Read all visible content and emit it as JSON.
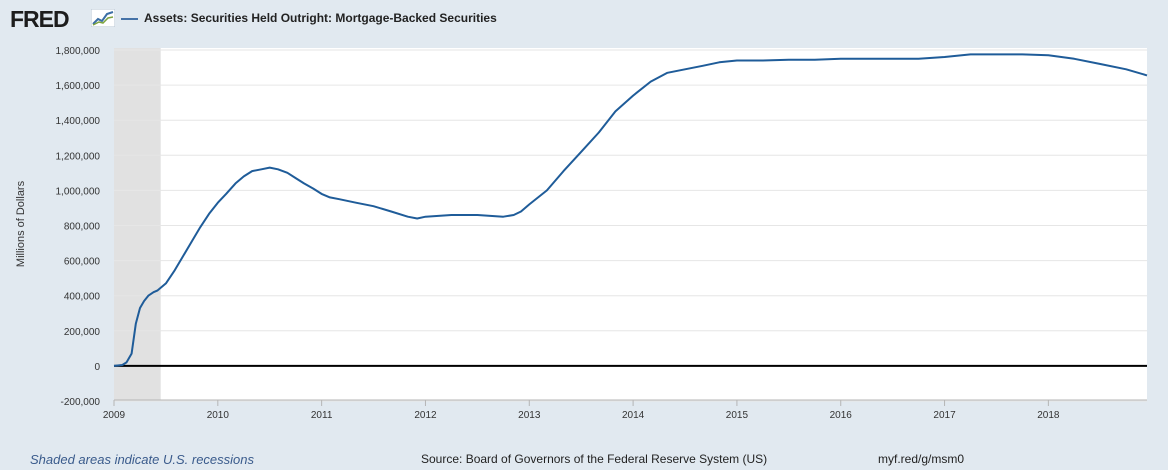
{
  "header": {
    "logo_text": "FRED",
    "logo_icon": "line-graph-icon",
    "legend_label": "Assets: Securities Held Outright: Mortgage-Backed Securities"
  },
  "footer": {
    "recession_note": "Shaded areas indicate U.S. recessions",
    "source": "Source: Board of Governors of the Federal Reserve System (US)",
    "url": "myf.red/g/msm0"
  },
  "colors": {
    "series": "#1f5c99",
    "legend_swatch": "#4572a7",
    "recession": "#e1e1e1",
    "zero_line": "#000000",
    "grid": "#e6e6e6"
  },
  "chart_data": {
    "type": "line",
    "ylabel": "Millions of Dollars",
    "xlim": [
      2009.0,
      2018.95
    ],
    "ylim": [
      -200000,
      1800000
    ],
    "y_ticks": [
      -200000,
      0,
      200000,
      400000,
      600000,
      800000,
      1000000,
      1200000,
      1400000,
      1600000,
      1800000
    ],
    "y_tick_labels": [
      "-200,000",
      "0",
      "200,000",
      "400,000",
      "600,000",
      "800,000",
      "1,000,000",
      "1,200,000",
      "1,400,000",
      "1,600,000",
      "1,800,000"
    ],
    "x_ticks": [
      2009,
      2010,
      2011,
      2012,
      2013,
      2014,
      2015,
      2016,
      2017,
      2018
    ],
    "x_tick_labels": [
      "2009",
      "2010",
      "2011",
      "2012",
      "2013",
      "2014",
      "2015",
      "2016",
      "2017",
      "2018"
    ],
    "recessions": [
      [
        2009.0,
        2009.45
      ]
    ],
    "grid": true,
    "series": [
      {
        "name": "Assets: Securities Held Outright: Mortgage-Backed Securities",
        "x": [
          2009.0,
          2009.08,
          2009.12,
          2009.17,
          2009.21,
          2009.25,
          2009.29,
          2009.33,
          2009.38,
          2009.42,
          2009.5,
          2009.58,
          2009.67,
          2009.75,
          2009.83,
          2009.92,
          2010.0,
          2010.08,
          2010.17,
          2010.25,
          2010.33,
          2010.42,
          2010.5,
          2010.58,
          2010.67,
          2010.75,
          2010.83,
          2010.92,
          2011.0,
          2011.08,
          2011.17,
          2011.33,
          2011.5,
          2011.67,
          2011.83,
          2011.92,
          2012.0,
          2012.25,
          2012.5,
          2012.75,
          2012.85,
          2012.92,
          2013.0,
          2013.17,
          2013.33,
          2013.5,
          2013.67,
          2013.83,
          2014.0,
          2014.17,
          2014.33,
          2014.5,
          2014.67,
          2014.83,
          2015.0,
          2015.25,
          2015.5,
          2015.75,
          2016.0,
          2016.25,
          2016.5,
          2016.75,
          2017.0,
          2017.25,
          2017.5,
          2017.75,
          2018.0,
          2018.25,
          2018.5,
          2018.75,
          2018.95
        ],
        "values": [
          0,
          5000,
          20000,
          70000,
          240000,
          330000,
          370000,
          400000,
          420000,
          430000,
          470000,
          540000,
          630000,
          710000,
          790000,
          870000,
          930000,
          980000,
          1040000,
          1080000,
          1110000,
          1120000,
          1130000,
          1120000,
          1100000,
          1070000,
          1040000,
          1010000,
          980000,
          960000,
          950000,
          930000,
          910000,
          880000,
          850000,
          840000,
          850000,
          860000,
          860000,
          850000,
          860000,
          880000,
          920000,
          1000000,
          1110000,
          1220000,
          1330000,
          1450000,
          1540000,
          1620000,
          1670000,
          1690000,
          1710000,
          1730000,
          1740000,
          1740000,
          1745000,
          1745000,
          1750000,
          1750000,
          1750000,
          1750000,
          1760000,
          1775000,
          1775000,
          1775000,
          1770000,
          1750000,
          1720000,
          1690000,
          1655000
        ]
      }
    ]
  }
}
